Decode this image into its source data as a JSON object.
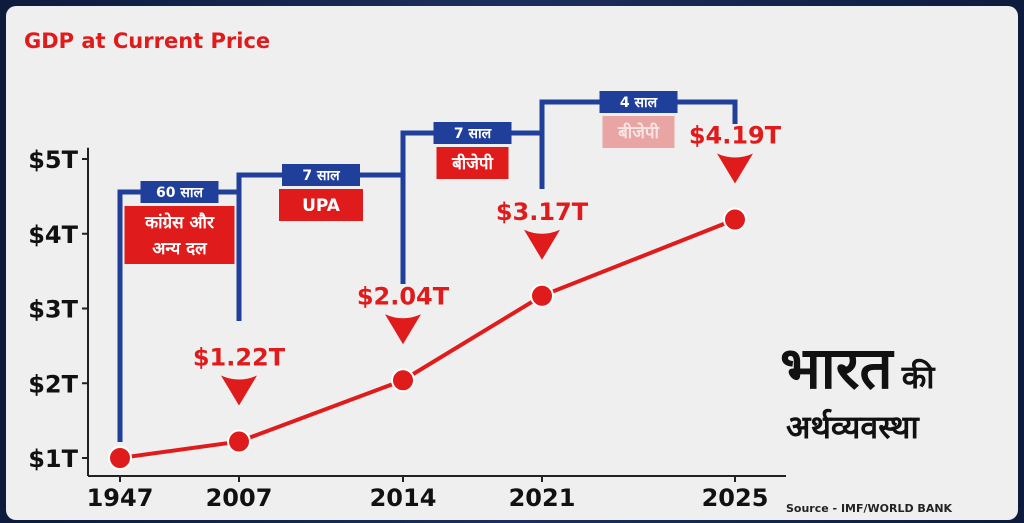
{
  "chart_data": {
    "type": "line",
    "title": "GDP at Current Price",
    "categories": [
      "1947",
      "2007",
      "2014",
      "2021",
      "2025"
    ],
    "series": [
      {
        "values": [
          1.0,
          1.22,
          2.04,
          3.17,
          4.19
        ]
      }
    ],
    "data_labels": [
      "",
      "$1.22T",
      "$2.04T",
      "$3.17T",
      "$4.19T"
    ],
    "yticks": [
      1,
      2,
      3,
      4,
      5
    ],
    "ytick_labels": [
      "$1T",
      "$2T",
      "$3T",
      "$4T",
      "$5T"
    ],
    "ylim": [
      0.95,
      5.15
    ],
    "grid": false,
    "line_color": "#e01b1b",
    "periods": [
      {
        "duration": "60 साल",
        "party_lines": [
          "कांग्रेस और",
          "अन्य दल"
        ],
        "start": "1947",
        "end": "2007",
        "faded": false
      },
      {
        "duration": "7 साल",
        "party_lines": [
          "UPA"
        ],
        "start": "2007",
        "end": "2014",
        "faded": false
      },
      {
        "duration": "7 साल",
        "party_lines": [
          "बीजेपी"
        ],
        "start": "2014",
        "end": "2021",
        "faded": false
      },
      {
        "duration": "4 साल",
        "party_lines": [
          "बीजेपी"
        ],
        "start": "2021",
        "end": "2025",
        "faded": true
      }
    ],
    "bracket_color": "#1f3f9a",
    "party_box_color": "#e01b1b"
  },
  "branding": {
    "line1_big": "भारत",
    "line1_small": "की",
    "line2": "अर्थव्यवस्था"
  },
  "source": "Source - IMF/WORLD BANK"
}
